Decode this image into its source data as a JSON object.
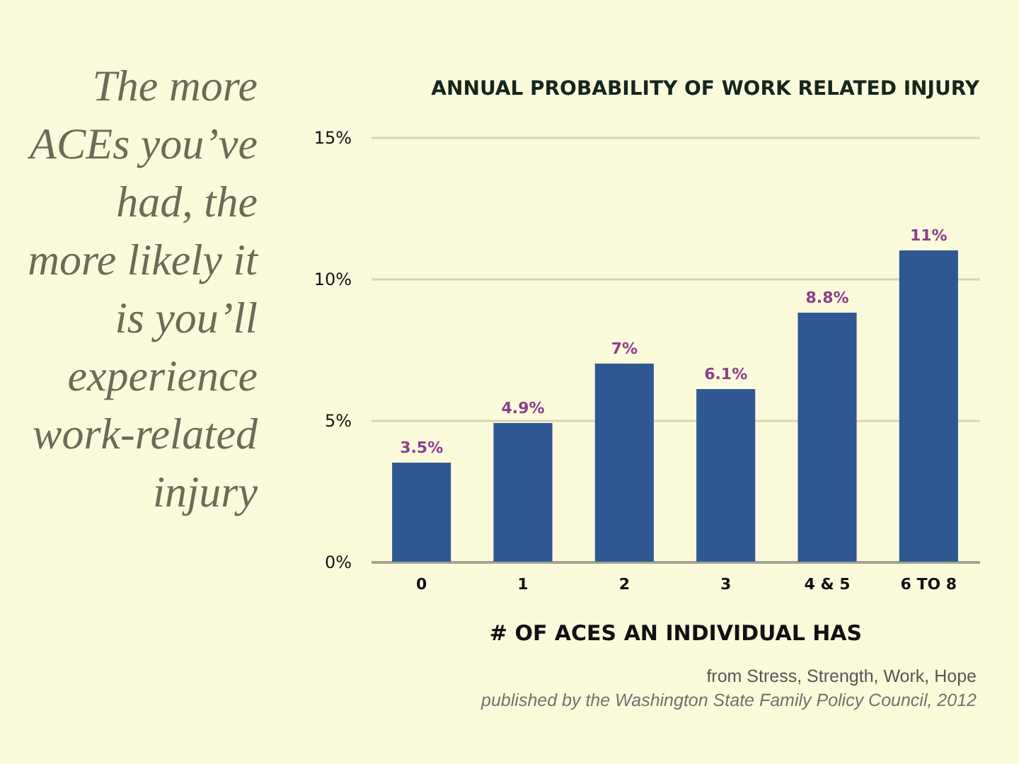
{
  "chart_data": {
    "type": "bar",
    "title": "ANNUAL PROBABILITY OF WORK RELATED INJURY",
    "xlabel": "# OF ACES AN INDIVIDUAL HAS",
    "categories": [
      "0",
      "1",
      "2",
      "3",
      "4 & 5",
      "6 TO 8"
    ],
    "values": [
      3.5,
      4.9,
      7,
      6.1,
      8.8,
      11
    ],
    "value_labels": [
      "3.5%",
      "4.9%",
      "7%",
      "6.1%",
      "8.8%",
      "11%"
    ],
    "color": "#2f5893",
    "ylim": [
      0,
      15
    ],
    "yticks": [
      {
        "value": 0,
        "label": "0%"
      },
      {
        "value": 5,
        "label": "5%"
      },
      {
        "value": 10,
        "label": "10%"
      },
      {
        "value": 15,
        "label": "15%"
      }
    ],
    "grid": "y",
    "annotations": [
      "The more\nACEs you’ve\nhad, the\nmore likely it\nis you’ll\nexperience\nwork-related\ninjury",
      "from Stress, Strength, Work, Hope",
      "published by the Washington State Family Policy Council, 2012"
    ]
  }
}
